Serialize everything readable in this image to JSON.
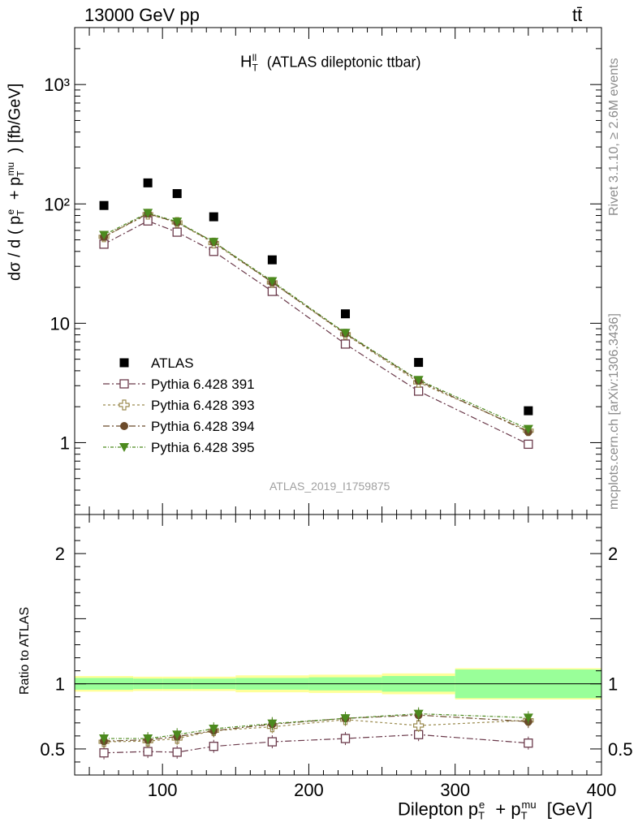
{
  "header": {
    "energy": "13000 GeV pp",
    "process": "tt̄"
  },
  "side_labels": {
    "rivet": "Rivet 3.1.10, ≥ 2.6M events",
    "mcplots": "mcplots.cern.ch [arXiv:1306.3436]"
  },
  "colors": {
    "atlas": "#000000",
    "p391": "#6b3a4b",
    "p393": "#9b8b4f",
    "p394": "#6b4a2a",
    "p395": "#4c8a1e",
    "band_outer": "#ffff99",
    "band_inner": "#99ff99",
    "watermark": "#a0a0a0"
  },
  "chart_data": [
    {
      "type": "scatter",
      "title": "H",
      "title_sup": "ll",
      "title_sub": "T",
      "title_suffix": "(ATLAS dileptonic ttbar)",
      "watermark": "ATLAS_2019_I1759875",
      "ylabel": "dσ / d ( p_T^e + p_T^mu ) [fb/GeV]",
      "yscale": "log",
      "xlim": [
        40,
        400
      ],
      "ylim": [
        0.25,
        3000
      ],
      "y_ticks": [
        {
          "value": 1,
          "label": "1"
        },
        {
          "value": 10,
          "label": "10"
        },
        {
          "value": 100,
          "label": "10²"
        },
        {
          "value": 1000,
          "label": "10³"
        }
      ],
      "x": [
        60,
        90,
        110,
        135,
        175,
        225,
        275,
        350
      ],
      "series": [
        {
          "name": "ATLAS",
          "marker": "square-filled",
          "color": "#000000",
          "values": [
            97,
            150,
            122,
            78,
            34,
            12,
            4.7,
            1.85
          ]
        },
        {
          "name": "Pythia 6.428 391",
          "marker": "square-open",
          "color": "#6b3a4b",
          "values": [
            46,
            72,
            58,
            40,
            18.5,
            6.7,
            2.7,
            0.97
          ]
        },
        {
          "name": "Pythia 6.428 393",
          "marker": "cross-open",
          "color": "#9b8b4f",
          "values": [
            53,
            82,
            70,
            47,
            22,
            8.1,
            3.2,
            1.26
          ]
        },
        {
          "name": "Pythia 6.428 394",
          "marker": "circle-filled",
          "color": "#6b4a2a",
          "values": [
            53,
            83,
            70,
            48,
            22,
            8.2,
            3.3,
            1.23
          ]
        },
        {
          "name": "Pythia 6.428 395",
          "marker": "triangle-down-filled",
          "color": "#4c8a1e",
          "values": [
            55,
            84,
            71,
            48,
            22.5,
            8.3,
            3.35,
            1.3
          ]
        }
      ],
      "legend_placement": "middle-left"
    },
    {
      "type": "scatter",
      "xlabel": "Dilepton p_T^e + p_T^mu [GeV]",
      "ylabel": "Ratio to ATLAS",
      "xlim": [
        40,
        400
      ],
      "ylim": [
        0.3,
        2.3
      ],
      "x_ticks": [
        100,
        200,
        300,
        400
      ],
      "y_ticks": [
        0.5,
        1,
        2
      ],
      "bin_edges": [
        40,
        80,
        100,
        120,
        150,
        200,
        250,
        300,
        400
      ],
      "band_inner": [
        0.045,
        0.04,
        0.04,
        0.04,
        0.045,
        0.05,
        0.06,
        0.11
      ],
      "band_outer": [
        0.06,
        0.055,
        0.055,
        0.055,
        0.065,
        0.07,
        0.08,
        0.12
      ],
      "x": [
        60,
        90,
        110,
        135,
        175,
        225,
        275,
        350
      ],
      "series": [
        {
          "name": "Pythia 6.428 391",
          "values": [
            0.47,
            0.48,
            0.475,
            0.52,
            0.555,
            0.58,
            0.61,
            0.545
          ]
        },
        {
          "name": "Pythia 6.428 393",
          "values": [
            0.555,
            0.56,
            0.58,
            0.64,
            0.67,
            0.725,
            0.68,
            0.72
          ]
        },
        {
          "name": "Pythia 6.428 394",
          "values": [
            0.56,
            0.57,
            0.595,
            0.64,
            0.69,
            0.735,
            0.76,
            0.71
          ]
        },
        {
          "name": "Pythia 6.428 395",
          "values": [
            0.58,
            0.58,
            0.61,
            0.655,
            0.695,
            0.735,
            0.77,
            0.74
          ]
        }
      ]
    }
  ]
}
